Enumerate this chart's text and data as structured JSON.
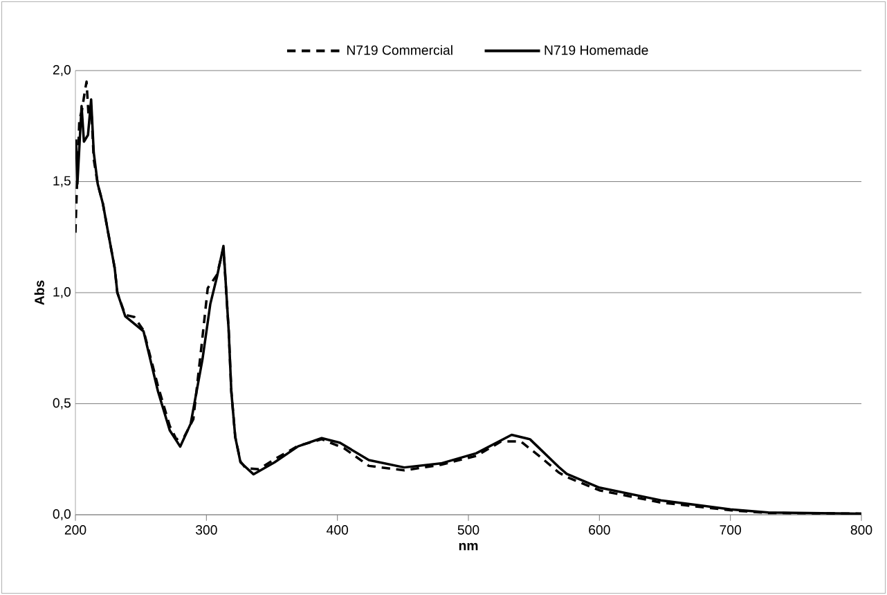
{
  "chart_data": {
    "type": "line",
    "xlabel": "nm",
    "ylabel": "Abs",
    "xlim": [
      200,
      800
    ],
    "ylim": [
      0,
      2.0
    ],
    "xticks": [
      200,
      300,
      400,
      500,
      600,
      700,
      800
    ],
    "yticks": [
      {
        "value": 0,
        "label": "0,0"
      },
      {
        "value": 0.5,
        "label": "0,5"
      },
      {
        "value": 1.0,
        "label": "1,0"
      },
      {
        "value": 1.5,
        "label": "1,5"
      },
      {
        "value": 2.0,
        "label": "2,0"
      }
    ],
    "grid": "y",
    "legend": "top",
    "marker": "none",
    "series": [
      {
        "name": "N719 Commercial",
        "color": "#000000",
        "line_style": "dashed",
        "x": [
          200,
          201,
          203,
          205,
          207,
          208.5,
          210,
          212,
          214,
          217,
          221,
          225,
          230,
          232,
          238,
          245,
          252,
          263,
          272,
          277,
          283,
          290,
          297,
          301,
          308,
          313,
          317,
          319,
          322,
          326,
          330,
          340,
          352,
          370,
          388,
          405,
          424,
          451,
          479,
          506,
          525,
          540,
          555,
          569,
          575,
          600,
          647,
          700,
          729,
          800
        ],
        "values": [
          1.27,
          1.45,
          1.78,
          1.82,
          1.9,
          1.95,
          1.8,
          1.84,
          1.6,
          1.49,
          1.4,
          1.27,
          1.11,
          1.0,
          0.9,
          0.89,
          0.83,
          0.58,
          0.4,
          0.34,
          0.35,
          0.43,
          0.8,
          1.02,
          1.08,
          1.2,
          0.83,
          0.556,
          0.35,
          0.24,
          0.21,
          0.205,
          0.25,
          0.31,
          0.34,
          0.3,
          0.22,
          0.2,
          0.225,
          0.265,
          0.33,
          0.33,
          0.26,
          0.19,
          0.17,
          0.11,
          0.055,
          0.02,
          0.008,
          0.005
        ]
      },
      {
        "name": "N719 Homemade",
        "color": "#000000",
        "line_style": "solid",
        "x": [
          200.5,
          201.5,
          204.7,
          206.5,
          209.6,
          212,
          214,
          217,
          221,
          225,
          230,
          232,
          238,
          252,
          263,
          272,
          280,
          288,
          297,
          303,
          308,
          313,
          317,
          319,
          322,
          326,
          336,
          352,
          370,
          388,
          402,
          424,
          451,
          479,
          506,
          533,
          547,
          569,
          575,
          600,
          647,
          700,
          729,
          800
        ],
        "values": [
          1.69,
          1.49,
          1.84,
          1.68,
          1.71,
          1.87,
          1.63,
          1.49,
          1.4,
          1.27,
          1.11,
          1.0,
          0.894,
          0.826,
          0.556,
          0.38,
          0.307,
          0.41,
          0.7,
          0.95,
          1.07,
          1.21,
          0.83,
          0.556,
          0.35,
          0.236,
          0.182,
          0.236,
          0.308,
          0.345,
          0.324,
          0.246,
          0.213,
          0.231,
          0.277,
          0.36,
          0.34,
          0.215,
          0.184,
          0.122,
          0.065,
          0.024,
          0.01,
          0.005
        ]
      }
    ]
  }
}
